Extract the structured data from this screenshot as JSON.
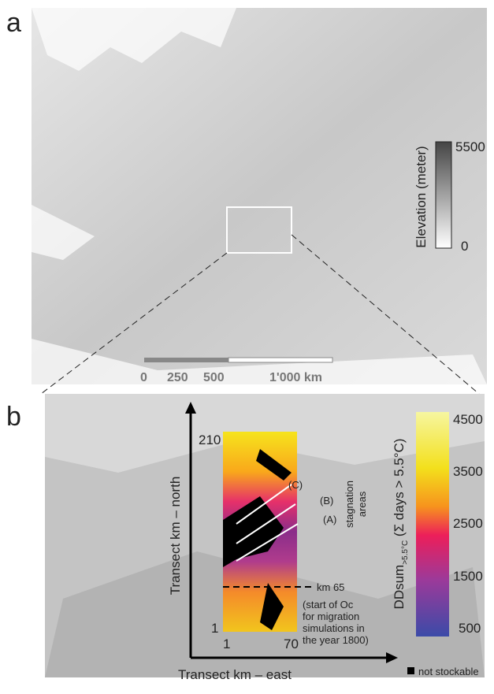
{
  "panel_a": {
    "label": "a",
    "colorbar": {
      "title": "Elevation (meter)",
      "max_label": "5500",
      "min_label": "0"
    },
    "scale_bar": {
      "labels": [
        "0",
        "250",
        "500",
        "1'000 km"
      ]
    }
  },
  "panel_b": {
    "label": "b",
    "y_axis": {
      "title": "Transect km – north",
      "top_label": "210",
      "bottom_label": "1"
    },
    "x_axis": {
      "title": "Transect km – east",
      "left_label": "1",
      "right_label": "70"
    },
    "annotations": {
      "c": "(C)",
      "b": "(B)",
      "a": "(A)",
      "stagnation": [
        "stagnation",
        "areas"
      ],
      "km": "km 65",
      "note": [
        "(start of Oc",
        "for migration",
        "simulations in",
        "the year 1800)"
      ]
    },
    "colorbar": {
      "title_main": "DDsum",
      "title_sub": ">5.5°C",
      "title_rest": " (Σ days > 5.5°C)",
      "ticks": [
        "4500",
        "3500",
        "2500",
        "1500",
        "500"
      ]
    },
    "legend": "not stockable"
  }
}
